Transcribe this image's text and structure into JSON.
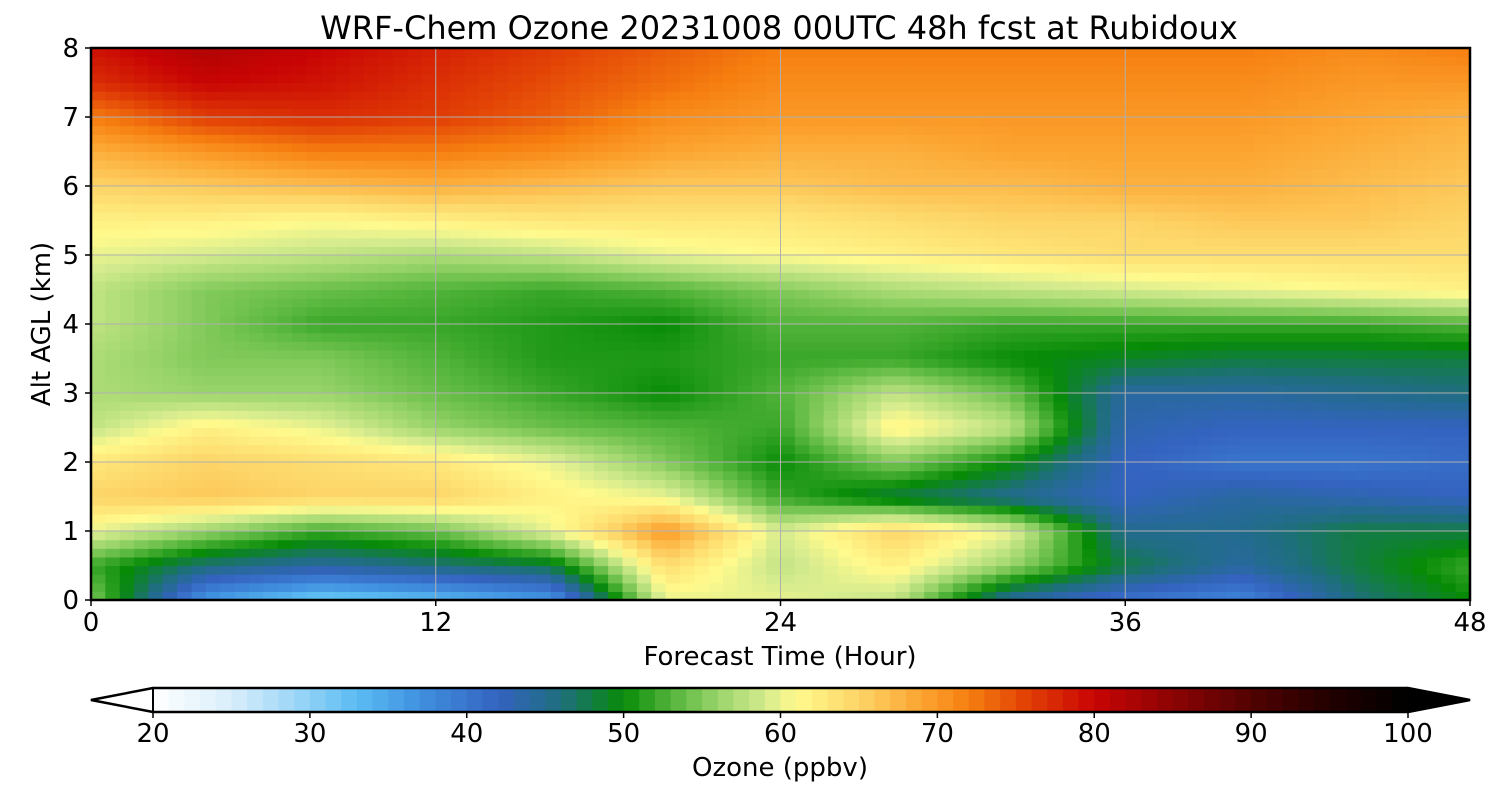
{
  "chart_data": {
    "type": "heatmap",
    "title": "WRF-Chem Ozone  20231008 00UTC 48h fcst at Rubidoux",
    "xlabel": "Forecast Time (Hour)",
    "ylabel": "Alt AGL (km)",
    "xlim": [
      0,
      48
    ],
    "ylim": [
      0,
      8
    ],
    "xticks": [
      0,
      12,
      24,
      36,
      48
    ],
    "yticks": [
      0,
      1,
      2,
      3,
      4,
      5,
      6,
      7,
      8
    ],
    "grid": true,
    "x": [
      0,
      4,
      8,
      12,
      16,
      20,
      24,
      28,
      32,
      36,
      40,
      44,
      48
    ],
    "y": [
      0,
      0.5,
      1,
      1.5,
      2,
      2.5,
      3,
      3.5,
      4,
      4.5,
      5,
      5.5,
      6,
      6.5,
      7,
      7.5,
      8
    ],
    "z": [
      [
        55,
        36,
        31,
        33,
        36,
        60,
        60,
        58,
        44,
        40,
        38,
        46,
        50
      ],
      [
        52,
        46,
        44,
        46,
        48,
        64,
        58,
        62,
        56,
        48,
        44,
        48,
        52
      ],
      [
        60,
        56,
        52,
        54,
        60,
        70,
        59,
        65,
        60,
        45,
        45,
        48,
        48
      ],
      [
        65,
        66,
        65,
        65,
        62,
        60,
        52,
        48,
        45,
        42,
        44,
        43,
        42
      ],
      [
        63,
        65,
        64,
        63,
        60,
        55,
        50,
        55,
        50,
        42,
        40,
        40,
        41
      ],
      [
        58,
        62,
        60,
        56,
        54,
        53,
        52,
        62,
        58,
        43,
        42,
        42,
        42
      ],
      [
        57,
        56,
        56,
        54,
        52,
        50,
        53,
        58,
        54,
        44,
        44,
        45,
        46
      ],
      [
        57,
        55,
        55,
        53,
        51,
        51,
        52,
        52,
        50,
        49,
        48,
        48,
        48
      ],
      [
        58,
        55,
        52,
        52,
        51,
        50,
        53,
        53,
        52,
        52,
        52,
        52,
        53
      ],
      [
        58,
        55,
        54,
        53,
        52,
        53,
        55,
        57,
        58,
        59,
        60,
        61,
        62
      ],
      [
        60,
        59,
        58,
        57,
        58,
        60,
        61,
        62,
        63,
        64,
        64,
        64,
        64
      ],
      [
        62,
        62,
        61,
        62,
        63,
        63,
        63,
        64,
        65,
        65,
        66,
        66,
        65
      ],
      [
        65,
        66,
        67,
        68,
        67,
        66,
        66,
        67,
        67,
        68,
        68,
        67,
        66
      ],
      [
        68,
        70,
        72,
        72,
        71,
        69,
        68,
        68,
        69,
        69,
        69,
        68,
        67
      ],
      [
        72,
        76,
        77,
        76,
        74,
        71,
        70,
        70,
        70,
        70,
        70,
        69,
        68
      ],
      [
        77,
        80,
        79,
        77,
        75,
        73,
        71,
        71,
        71,
        71,
        71,
        70,
        70
      ],
      [
        79,
        82,
        80,
        78,
        76,
        74,
        72,
        72,
        72,
        72,
        72,
        71,
        72
      ]
    ],
    "colorbar": {
      "label": "Ozone  (ppbv)",
      "min": 20,
      "max": 100,
      "ticks": [
        20,
        30,
        40,
        50,
        60,
        70,
        80,
        90,
        100
      ],
      "extend": "both",
      "orientation": "horizontal",
      "placement": "bottom",
      "colors": [
        {
          "v": 20,
          "c": "#ffffff"
        },
        {
          "v": 25,
          "c": "#d8eefb"
        },
        {
          "v": 30,
          "c": "#8dd0f6"
        },
        {
          "v": 33,
          "c": "#5bbcf2"
        },
        {
          "v": 37,
          "c": "#4090e0"
        },
        {
          "v": 42,
          "c": "#3463c0"
        },
        {
          "v": 46,
          "c": "#1e6e7e"
        },
        {
          "v": 50,
          "c": "#078b07"
        },
        {
          "v": 53,
          "c": "#52b43a"
        },
        {
          "v": 56,
          "c": "#99d46a"
        },
        {
          "v": 59,
          "c": "#d4eb8e"
        },
        {
          "v": 61,
          "c": "#fffa8d"
        },
        {
          "v": 65,
          "c": "#fdd467"
        },
        {
          "v": 69,
          "c": "#fca430"
        },
        {
          "v": 72,
          "c": "#f67f10"
        },
        {
          "v": 76,
          "c": "#e03c05"
        },
        {
          "v": 80,
          "c": "#c80404"
        },
        {
          "v": 85,
          "c": "#8c0404"
        },
        {
          "v": 90,
          "c": "#520202"
        },
        {
          "v": 95,
          "c": "#220000"
        },
        {
          "v": 100,
          "c": "#000000"
        }
      ]
    }
  }
}
